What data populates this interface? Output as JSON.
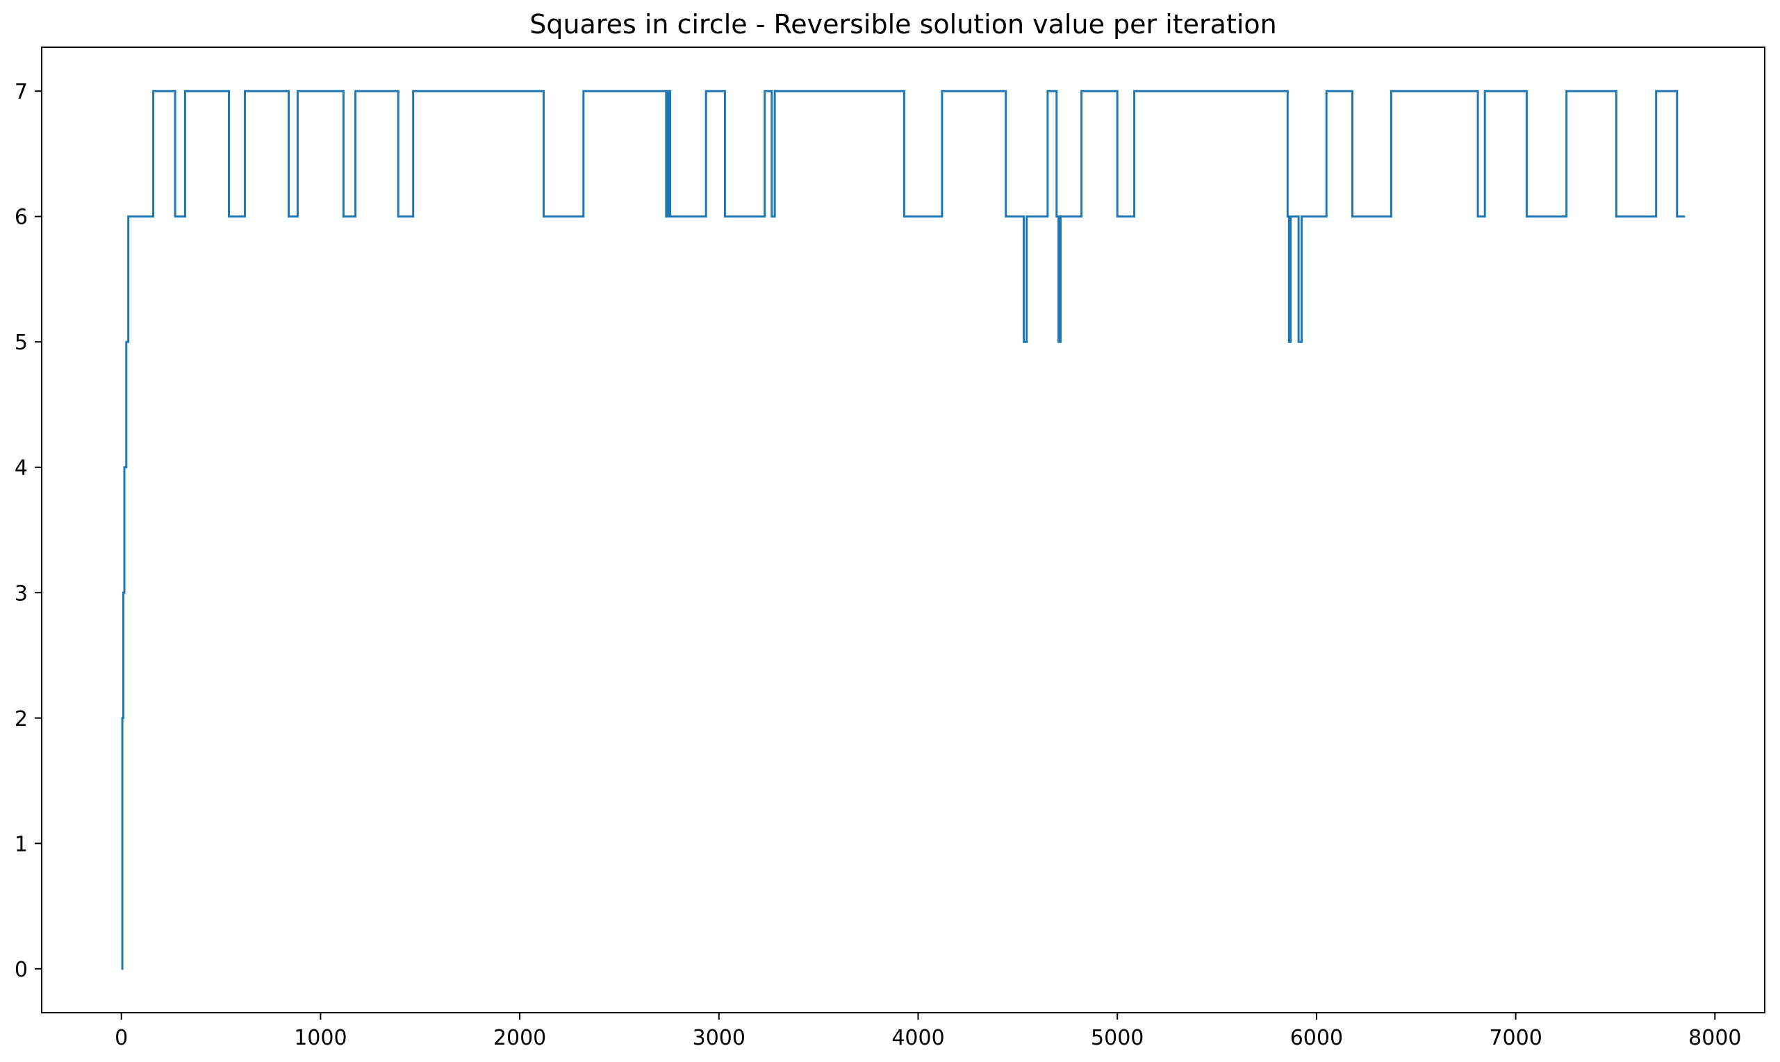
{
  "chart_data": {
    "type": "line",
    "drawstyle": "steps-post",
    "title": "Squares in circle - Reversible solution value per iteration",
    "xlabel": "",
    "ylabel": "",
    "xlim": [
      -400,
      8250
    ],
    "ylim": [
      -0.35,
      7.35
    ],
    "xticks": [
      0,
      1000,
      2000,
      3000,
      4000,
      5000,
      6000,
      7000,
      8000
    ],
    "yticks": [
      0,
      1,
      2,
      3,
      4,
      5,
      6,
      7
    ],
    "grid": false,
    "legend": "none",
    "series": [
      {
        "color": "#1f77b4",
        "points": [
          [
            0,
            0
          ],
          [
            5,
            2
          ],
          [
            10,
            3
          ],
          [
            15,
            4
          ],
          [
            25,
            5
          ],
          [
            35,
            6
          ],
          [
            160,
            7
          ],
          [
            270,
            6
          ],
          [
            320,
            7
          ],
          [
            540,
            6
          ],
          [
            620,
            7
          ],
          [
            840,
            6
          ],
          [
            885,
            7
          ],
          [
            1115,
            6
          ],
          [
            1175,
            7
          ],
          [
            1390,
            6
          ],
          [
            1465,
            7
          ],
          [
            2120,
            6
          ],
          [
            2320,
            7
          ],
          [
            2735,
            6
          ],
          [
            2745,
            7
          ],
          [
            2755,
            6
          ],
          [
            3080,
            6
          ],
          [
            2935,
            7
          ],
          [
            3030,
            6
          ],
          [
            3230,
            7
          ],
          [
            3265,
            6
          ],
          [
            3280,
            7
          ],
          [
            3930,
            6
          ],
          [
            4120,
            7
          ],
          [
            4440,
            6
          ],
          [
            4530,
            5
          ],
          [
            4545,
            6
          ],
          [
            4650,
            7
          ],
          [
            4695,
            6
          ],
          [
            4705,
            5
          ],
          [
            4715,
            6
          ],
          [
            4820,
            7
          ],
          [
            5000,
            6
          ],
          [
            5085,
            7
          ],
          [
            5855,
            6
          ],
          [
            5862,
            5
          ],
          [
            5870,
            6
          ],
          [
            5910,
            5
          ],
          [
            5925,
            6
          ],
          [
            6050,
            7
          ],
          [
            6180,
            6
          ],
          [
            6375,
            7
          ],
          [
            6810,
            6
          ],
          [
            6845,
            7
          ],
          [
            7055,
            6
          ],
          [
            7255,
            7
          ],
          [
            7505,
            6
          ],
          [
            7705,
            7
          ],
          [
            7810,
            6
          ],
          [
            7850,
            6
          ]
        ]
      }
    ]
  }
}
